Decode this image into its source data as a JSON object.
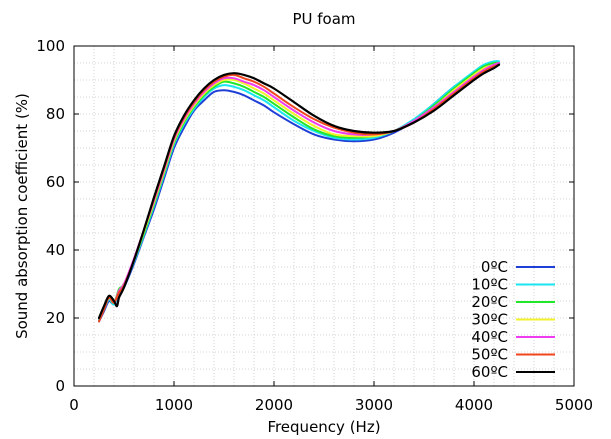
{
  "chart_data": {
    "type": "line",
    "title": "PU foam",
    "xlabel": "Frequency (Hz)",
    "ylabel": "Sound absorption coefficient (%)",
    "xlim": [
      0,
      5000
    ],
    "ylim": [
      0,
      100
    ],
    "xticks": [
      0,
      1000,
      2000,
      3000,
      4000,
      5000
    ],
    "yticks": [
      0,
      20,
      40,
      60,
      80,
      100
    ],
    "grid": true,
    "legend_position": "bottom-right",
    "series": [
      {
        "name": "0ºC",
        "color": "#1f3fd6",
        "x": [
          250,
          300,
          350,
          400,
          450,
          500,
          600,
          700,
          800,
          900,
          1000,
          1100,
          1200,
          1300,
          1400,
          1500,
          1600,
          1700,
          1800,
          1900,
          2000,
          2200,
          2400,
          2600,
          2800,
          3000,
          3200,
          3400,
          3600,
          3800,
          4000,
          4100,
          4200,
          4250
        ],
        "y": [
          19,
          22,
          25,
          24,
          27,
          29,
          36,
          44,
          52,
          61,
          70,
          76,
          81,
          84,
          86.5,
          87,
          86.5,
          85.5,
          84,
          82.5,
          80.5,
          77,
          74,
          72.5,
          72,
          72.5,
          74.5,
          78,
          83,
          88,
          92,
          94,
          95,
          95
        ]
      },
      {
        "name": "10ºC",
        "color": "#19e6f0",
        "x": [
          250,
          300,
          350,
          400,
          450,
          500,
          600,
          700,
          800,
          900,
          1000,
          1100,
          1200,
          1300,
          1400,
          1500,
          1600,
          1700,
          1800,
          1900,
          2000,
          2200,
          2400,
          2600,
          2800,
          3000,
          3200,
          3400,
          3600,
          3800,
          4000,
          4100,
          4200,
          4250
        ],
        "y": [
          19.5,
          22.5,
          25.5,
          24,
          27.5,
          29.5,
          36.5,
          44.5,
          53,
          62,
          71,
          77,
          81.5,
          85,
          87.5,
          88.5,
          88,
          87,
          85.5,
          84,
          82,
          78,
          75,
          73,
          72.5,
          73,
          75,
          78.5,
          83,
          88,
          92.5,
          94.5,
          95.5,
          95.5
        ]
      },
      {
        "name": "20ºC",
        "color": "#22e62a",
        "x": [
          250,
          300,
          350,
          400,
          450,
          500,
          600,
          700,
          800,
          900,
          1000,
          1100,
          1200,
          1300,
          1400,
          1500,
          1600,
          1700,
          1800,
          1900,
          2000,
          2200,
          2400,
          2600,
          2800,
          3000,
          3200,
          3400,
          3600,
          3800,
          4000,
          4100,
          4200,
          4250
        ],
        "y": [
          20,
          23,
          26,
          24.5,
          28.5,
          30,
          37,
          45,
          53.5,
          62.5,
          71.5,
          77.5,
          82,
          85.5,
          88,
          89.5,
          89,
          88,
          86.5,
          85,
          83,
          79,
          75.5,
          73.5,
          73,
          73.5,
          75,
          78,
          82.5,
          87.5,
          92,
          94,
          95,
          95
        ]
      },
      {
        "name": "30ºC",
        "color": "#f2f22a",
        "x": [
          250,
          300,
          350,
          400,
          450,
          500,
          600,
          700,
          800,
          900,
          1000,
          1100,
          1200,
          1300,
          1400,
          1500,
          1600,
          1700,
          1800,
          1900,
          2000,
          2200,
          2400,
          2600,
          2800,
          3000,
          3200,
          3400,
          3600,
          3800,
          4000,
          4100,
          4200,
          4250
        ],
        "y": [
          20,
          23,
          26,
          24.5,
          28,
          30,
          37,
          45.5,
          54,
          63,
          72,
          78,
          82.5,
          86,
          88.5,
          90,
          90,
          89,
          87.5,
          86,
          84,
          80,
          76.5,
          74,
          73.5,
          73.5,
          75,
          78,
          82,
          87,
          91.5,
          93.5,
          94.5,
          95
        ]
      },
      {
        "name": "40ºC",
        "color": "#f03cf0",
        "x": [
          250,
          300,
          350,
          400,
          450,
          500,
          600,
          700,
          800,
          900,
          1000,
          1100,
          1200,
          1300,
          1400,
          1500,
          1600,
          1700,
          1800,
          1900,
          2000,
          2200,
          2400,
          2600,
          2800,
          3000,
          3200,
          3400,
          3600,
          3800,
          4000,
          4100,
          4200,
          4250
        ],
        "y": [
          20,
          23,
          26.5,
          24.5,
          28,
          30,
          37.5,
          46,
          54.5,
          63.5,
          72.5,
          78.5,
          83,
          86.5,
          89,
          90.5,
          90.5,
          89.5,
          88.5,
          87,
          85,
          81,
          77.5,
          75,
          74,
          74,
          75,
          78,
          82,
          86.5,
          91,
          93,
          94.5,
          95
        ]
      },
      {
        "name": "50ºC",
        "color": "#f0461e",
        "x": [
          250,
          300,
          350,
          400,
          450,
          500,
          600,
          700,
          800,
          900,
          1000,
          1100,
          1200,
          1300,
          1400,
          1500,
          1600,
          1700,
          1800,
          1900,
          2000,
          2200,
          2400,
          2600,
          2800,
          3000,
          3200,
          3400,
          3600,
          3800,
          4000,
          4100,
          4200,
          4250
        ],
        "y": [
          19,
          22.5,
          26,
          24.5,
          27.5,
          29.5,
          37,
          46,
          55,
          64,
          73,
          79,
          83.5,
          87,
          89.5,
          91,
          91.5,
          90.5,
          89.5,
          88,
          86,
          82,
          78.5,
          76,
          74.5,
          74,
          75,
          77.5,
          81.5,
          86,
          90.5,
          92.5,
          94,
          94.5
        ]
      },
      {
        "name": "60ºC",
        "color": "#000000",
        "x": [
          250,
          300,
          350,
          400,
          430,
          450,
          500,
          600,
          700,
          800,
          900,
          1000,
          1100,
          1200,
          1300,
          1400,
          1500,
          1600,
          1700,
          1800,
          1900,
          2000,
          2200,
          2400,
          2600,
          2800,
          3000,
          3200,
          3400,
          3600,
          3800,
          4000,
          4100,
          4200,
          4250
        ],
        "y": [
          20,
          23.5,
          26.5,
          25,
          23.5,
          26,
          29,
          37,
          46,
          55.5,
          64.5,
          73.5,
          79.5,
          84,
          87.5,
          90,
          91.5,
          92,
          91.5,
          90.5,
          89,
          87.5,
          83.5,
          79.5,
          76.5,
          75,
          74.5,
          75,
          77.5,
          81,
          85.5,
          90,
          92,
          93.5,
          94.5
        ]
      }
    ]
  }
}
